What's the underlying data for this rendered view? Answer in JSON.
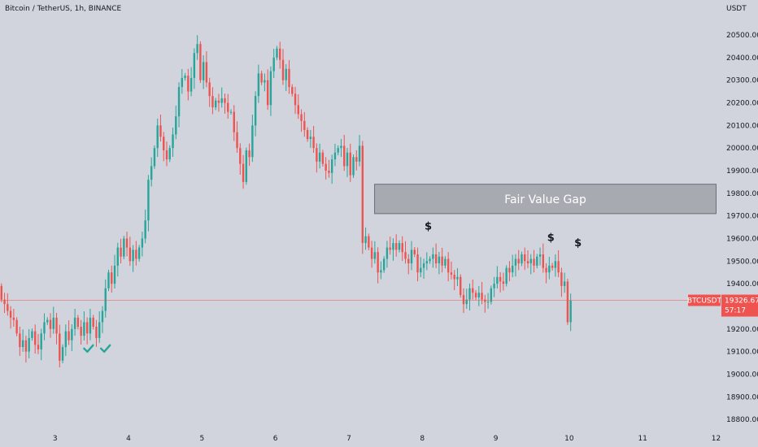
{
  "chart_data": {
    "type": "candlestick",
    "title": "Bitcoin / TetherUS, 1h, BINANCE",
    "currency": "USDT",
    "ylim": [
      18750,
      20590
    ],
    "y_ticks": [
      "18800.00",
      "18900.00",
      "19000.00",
      "19100.00",
      "19200.00",
      "19300.00",
      "19400.00",
      "19500.00",
      "19600.00",
      "19700.00",
      "19800.00",
      "19900.00",
      "20000.00",
      "20100.00",
      "20200.00",
      "20300.00",
      "20400.00",
      "20500.00"
    ],
    "x_ticks": [
      {
        "label": "3",
        "day": 3
      },
      {
        "label": "4",
        "day": 4
      },
      {
        "label": "5",
        "day": 5
      },
      {
        "label": "6",
        "day": 6
      },
      {
        "label": "7",
        "day": 7
      },
      {
        "label": "8",
        "day": 8
      },
      {
        "label": "9",
        "day": 9
      },
      {
        "label": "10",
        "day": 10
      },
      {
        "label": "11",
        "day": 11
      },
      {
        "label": "12",
        "day": 12
      }
    ],
    "xlim_days": [
      2.25,
      12.05
    ],
    "candles_per_day": 24,
    "first_candle_day": 2.27,
    "start_price": 19390,
    "closes": [
      19330,
      19310,
      19280,
      19250,
      19240,
      19180,
      19120,
      19150,
      19100,
      19160,
      19190,
      19130,
      19110,
      19180,
      19230,
      19240,
      19200,
      19250,
      19180,
      19060,
      19120,
      19190,
      19150,
      19200,
      19250,
      19210,
      19170,
      19230,
      19180,
      19250,
      19210,
      19160,
      19230,
      19280,
      19380,
      19450,
      19400,
      19480,
      19560,
      19520,
      19600,
      19560,
      19500,
      19550,
      19510,
      19560,
      19600,
      19680,
      19860,
      19920,
      20000,
      20100,
      20050,
      19990,
      19950,
      20000,
      20060,
      20140,
      20270,
      20310,
      20320,
      20250,
      20310,
      20420,
      20460,
      20300,
      20380,
      20290,
      20230,
      20180,
      20210,
      20200,
      20220,
      20200,
      20160,
      20160,
      20070,
      20000,
      19930,
      19850,
      19990,
      19960,
      20100,
      20230,
      20330,
      20290,
      20300,
      20190,
      20340,
      20400,
      20440,
      20390,
      20300,
      20350,
      20270,
      20240,
      20190,
      20150,
      20120,
      20080,
      20040,
      20050,
      20000,
      19940,
      19980,
      19930,
      19900,
      19890,
      19950,
      19980,
      20000,
      20010,
      19920,
      19980,
      19880,
      19960,
      19940,
      20010,
      19580,
      19610,
      19560,
      19510,
      19540,
      19450,
      19460,
      19510,
      19560,
      19550,
      19580,
      19550,
      19580,
      19540,
      19510,
      19490,
      19550,
      19530,
      19450,
      19470,
      19490,
      19500,
      19510,
      19530,
      19490,
      19520,
      19480,
      19510,
      19450,
      19440,
      19420,
      19430,
      19350,
      19310,
      19330,
      19380,
      19360,
      19340,
      19360,
      19330,
      19320,
      19320,
      19380,
      19400,
      19430,
      19410,
      19400,
      19470,
      19450,
      19480,
      19510,
      19490,
      19530,
      19500,
      19490,
      19510,
      19480,
      19520,
      19530,
      19470,
      19450,
      19480,
      19470,
      19500,
      19450,
      19390,
      19410,
      19230,
      19326.67
    ],
    "fvg_zone": {
      "label": "Fair Value Gap",
      "low": 19710,
      "high": 19840,
      "from_day": 7.35,
      "to_day": 12.0
    },
    "markers": [
      {
        "type": "check",
        "day": 3.45,
        "price": 19110
      },
      {
        "type": "check",
        "day": 3.68,
        "price": 19110
      },
      {
        "type": "dollar",
        "label": "$",
        "day": 8.08,
        "price": 19640
      },
      {
        "type": "dollar",
        "label": "$",
        "day": 9.75,
        "price": 19590
      },
      {
        "type": "dollar",
        "label": "$",
        "day": 10.12,
        "price": 19565
      }
    ],
    "last_price": {
      "symbol": "BTCUSDT",
      "value": "19326.67",
      "countdown": "57:17"
    },
    "colors": {
      "up": "#26a69a",
      "down": "#ef5350",
      "background": "#d1d4dc",
      "fvg": "#a7aab1",
      "last_line": "#ef5350",
      "text": "#131722"
    }
  }
}
